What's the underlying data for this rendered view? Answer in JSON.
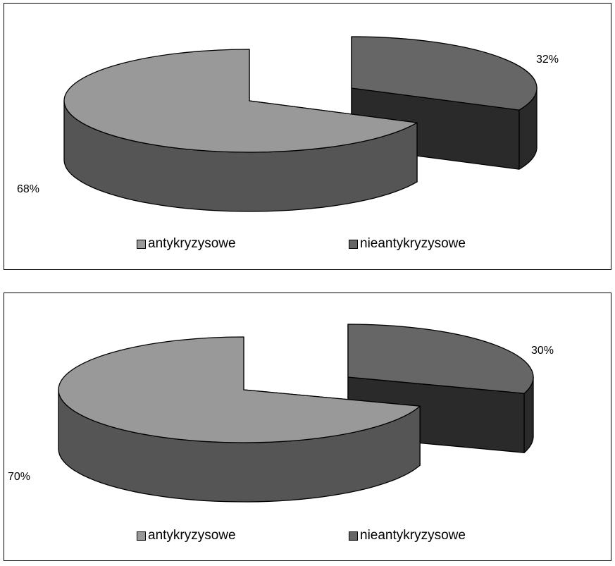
{
  "chart_data": [
    {
      "type": "pie",
      "style": "3d-exploded",
      "categories": [
        "antykryzysowe",
        "nieantykryzysowe"
      ],
      "values": [
        68,
        32
      ],
      "labels": [
        "68%",
        "32%"
      ],
      "legend_position": "bottom",
      "colors": {
        "antykryzysowe": "#999999",
        "nieantykryzysowe": "#666666"
      }
    },
    {
      "type": "pie",
      "style": "3d-exploded",
      "categories": [
        "antykryzysowe",
        "nieantykryzysowe"
      ],
      "values": [
        70,
        30
      ],
      "labels": [
        "70%",
        "30%"
      ],
      "legend_position": "bottom",
      "colors": {
        "antykryzysowe": "#999999",
        "nieantykryzysowe": "#666666"
      }
    }
  ]
}
